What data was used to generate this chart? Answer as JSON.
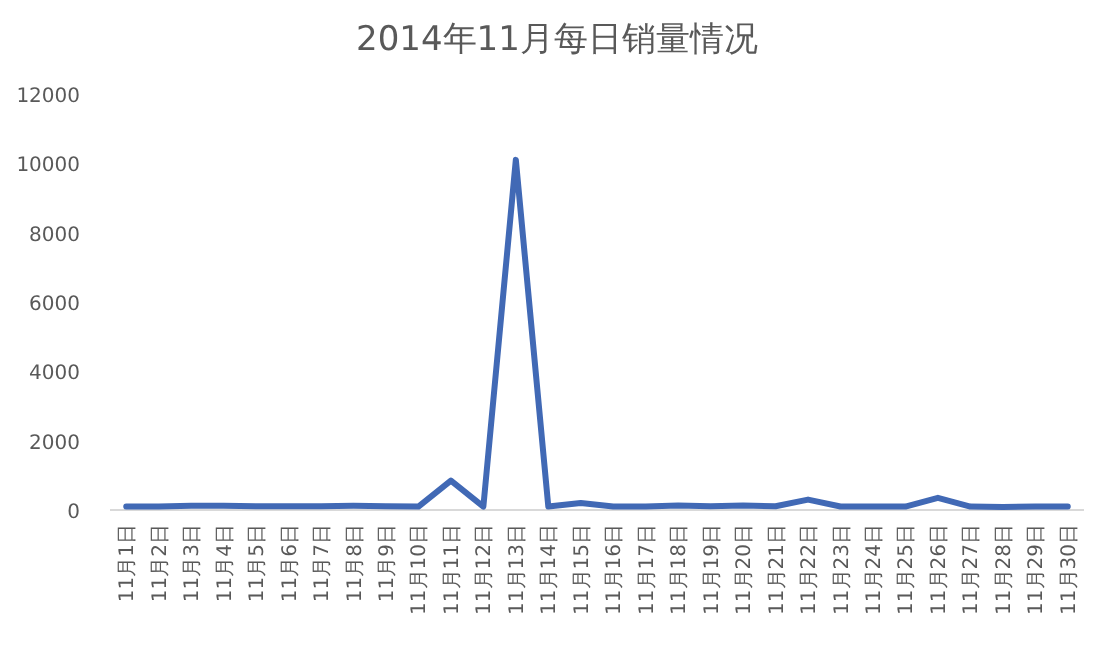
{
  "chart_data": {
    "type": "line",
    "title": "2014年11月每日销量情况",
    "categories": [
      "11月1日",
      "11月2日",
      "11月3日",
      "11月4日",
      "11月5日",
      "11月6日",
      "11月7日",
      "11月8日",
      "11月9日",
      "11月10日",
      "11月11日",
      "11月12日",
      "11月13日",
      "11月14日",
      "11月15日",
      "11月16日",
      "11月17日",
      "11月18日",
      "11月19日",
      "11月20日",
      "11月21日",
      "11月22日",
      "11月23日",
      "11月24日",
      "11月25日",
      "11月26日",
      "11月27日",
      "11月28日",
      "11月29日",
      "11月30日"
    ],
    "series": [
      {
        "color": "#4169b5",
        "values": [
          100,
          100,
          120,
          120,
          110,
          110,
          110,
          120,
          110,
          100,
          850,
          100,
          10100,
          100,
          200,
          100,
          100,
          130,
          110,
          130,
          110,
          300,
          100,
          100,
          100,
          350,
          100,
          90,
          100,
          100
        ]
      }
    ],
    "ylim": [
      0,
      12000
    ],
    "yticks": [
      0,
      2000,
      4000,
      6000,
      8000,
      10000,
      12000
    ],
    "marker": "none",
    "line_style": "solid"
  }
}
